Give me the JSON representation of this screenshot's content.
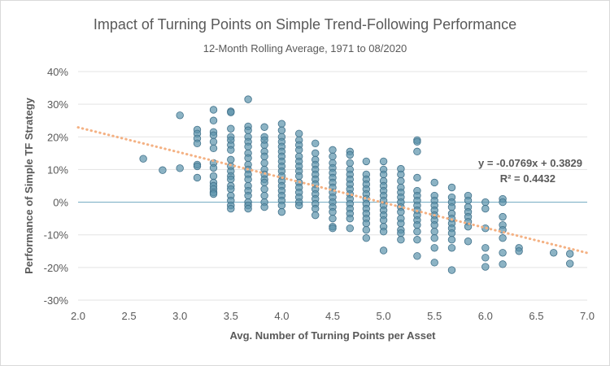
{
  "chart_data": {
    "type": "scatter",
    "title": "Impact of Turning Points on Simple Trend-Following Performance",
    "subtitle": "12-Month Rolling Average, 1971 to 08/2020",
    "xlabel": "Avg. Number of Turning Points per Asset",
    "ylabel": "Performance of Simple TF Strategy",
    "xlim": [
      2.0,
      7.0
    ],
    "ylim": [
      -0.3,
      0.4
    ],
    "x_ticks": [
      "2.0",
      "2.5",
      "3.0",
      "3.5",
      "4.0",
      "4.5",
      "5.0",
      "5.5",
      "6.0",
      "6.5",
      "7.0"
    ],
    "y_ticks": [
      "-30%",
      "-20%",
      "-10%",
      "0%",
      "10%",
      "20%",
      "30%",
      "40%"
    ],
    "grid": "horizontal",
    "trendline": {
      "type": "linear",
      "slope": -0.0769,
      "intercept": 0.3829,
      "style": "dotted",
      "color": "#f4b183",
      "equation_label": "y = -0.0769x + 0.3829",
      "r2_label": "R² = 0.4432"
    },
    "marker_color": "#5b93ab",
    "marker_edge": "#41718a",
    "points": [
      [
        2.64,
        0.133
      ],
      [
        2.83,
        0.098
      ],
      [
        3.0,
        0.266
      ],
      [
        3.0,
        0.104
      ],
      [
        3.17,
        0.222
      ],
      [
        3.17,
        0.21
      ],
      [
        3.17,
        0.195
      ],
      [
        3.17,
        0.18
      ],
      [
        3.17,
        0.115
      ],
      [
        3.17,
        0.11
      ],
      [
        3.17,
        0.075
      ],
      [
        3.33,
        0.283
      ],
      [
        3.33,
        0.25
      ],
      [
        3.33,
        0.215
      ],
      [
        3.33,
        0.205
      ],
      [
        3.33,
        0.185
      ],
      [
        3.33,
        0.165
      ],
      [
        3.33,
        0.12
      ],
      [
        3.33,
        0.105
      ],
      [
        3.33,
        0.08
      ],
      [
        3.33,
        0.06
      ],
      [
        3.33,
        0.05
      ],
      [
        3.33,
        0.04
      ],
      [
        3.33,
        0.03
      ],
      [
        3.33,
        0.025
      ],
      [
        3.5,
        0.278
      ],
      [
        3.5,
        0.275
      ],
      [
        3.5,
        0.225
      ],
      [
        3.5,
        0.2
      ],
      [
        3.5,
        0.19
      ],
      [
        3.5,
        0.175
      ],
      [
        3.5,
        0.16
      ],
      [
        3.5,
        0.13
      ],
      [
        3.5,
        0.11
      ],
      [
        3.5,
        0.095
      ],
      [
        3.5,
        0.08
      ],
      [
        3.5,
        0.07
      ],
      [
        3.5,
        0.05
      ],
      [
        3.5,
        0.04
      ],
      [
        3.5,
        0.02
      ],
      [
        3.5,
        0.005
      ],
      [
        3.5,
        -0.01
      ],
      [
        3.5,
        -0.02
      ],
      [
        3.67,
        0.315
      ],
      [
        3.67,
        0.232
      ],
      [
        3.67,
        0.22
      ],
      [
        3.67,
        0.2
      ],
      [
        3.67,
        0.185
      ],
      [
        3.67,
        0.17
      ],
      [
        3.67,
        0.15
      ],
      [
        3.67,
        0.135
      ],
      [
        3.67,
        0.115
      ],
      [
        3.67,
        0.1
      ],
      [
        3.67,
        0.085
      ],
      [
        3.67,
        0.07
      ],
      [
        3.67,
        0.05
      ],
      [
        3.67,
        0.035
      ],
      [
        3.67,
        0.02
      ],
      [
        3.67,
        0.0
      ],
      [
        3.67,
        -0.01
      ],
      [
        3.67,
        -0.02
      ],
      [
        3.83,
        0.23
      ],
      [
        3.83,
        0.2
      ],
      [
        3.83,
        0.19
      ],
      [
        3.83,
        0.175
      ],
      [
        3.83,
        0.155
      ],
      [
        3.83,
        0.14
      ],
      [
        3.83,
        0.12
      ],
      [
        3.83,
        0.1
      ],
      [
        3.83,
        0.085
      ],
      [
        3.83,
        0.07
      ],
      [
        3.83,
        0.06
      ],
      [
        3.83,
        0.04
      ],
      [
        3.83,
        0.02
      ],
      [
        3.83,
        0.0
      ],
      [
        3.83,
        -0.015
      ],
      [
        4.0,
        0.24
      ],
      [
        4.0,
        0.22
      ],
      [
        4.0,
        0.2
      ],
      [
        4.0,
        0.185
      ],
      [
        4.0,
        0.17
      ],
      [
        4.0,
        0.155
      ],
      [
        4.0,
        0.14
      ],
      [
        4.0,
        0.125
      ],
      [
        4.0,
        0.11
      ],
      [
        4.0,
        0.095
      ],
      [
        4.0,
        0.08
      ],
      [
        4.0,
        0.065
      ],
      [
        4.0,
        0.05
      ],
      [
        4.0,
        0.035
      ],
      [
        4.0,
        0.02
      ],
      [
        4.0,
        0.005
      ],
      [
        4.0,
        -0.01
      ],
      [
        4.0,
        -0.03
      ],
      [
        4.17,
        0.21
      ],
      [
        4.17,
        0.19
      ],
      [
        4.17,
        0.175
      ],
      [
        4.17,
        0.16
      ],
      [
        4.17,
        0.14
      ],
      [
        4.17,
        0.125
      ],
      [
        4.17,
        0.11
      ],
      [
        4.17,
        0.095
      ],
      [
        4.17,
        0.08
      ],
      [
        4.17,
        0.06
      ],
      [
        4.17,
        0.045
      ],
      [
        4.17,
        0.03
      ],
      [
        4.17,
        0.015
      ],
      [
        4.17,
        0.0
      ],
      [
        4.17,
        -0.01
      ],
      [
        4.33,
        0.18
      ],
      [
        4.33,
        0.15
      ],
      [
        4.33,
        0.13
      ],
      [
        4.33,
        0.115
      ],
      [
        4.33,
        0.1
      ],
      [
        4.33,
        0.085
      ],
      [
        4.33,
        0.07
      ],
      [
        4.33,
        0.055
      ],
      [
        4.33,
        0.04
      ],
      [
        4.33,
        0.025
      ],
      [
        4.33,
        0.01
      ],
      [
        4.33,
        -0.005
      ],
      [
        4.33,
        -0.02
      ],
      [
        4.33,
        -0.04
      ],
      [
        4.5,
        0.16
      ],
      [
        4.5,
        0.14
      ],
      [
        4.5,
        0.12
      ],
      [
        4.5,
        0.105
      ],
      [
        4.5,
        0.09
      ],
      [
        4.5,
        0.075
      ],
      [
        4.5,
        0.06
      ],
      [
        4.5,
        0.045
      ],
      [
        4.5,
        0.03
      ],
      [
        4.5,
        0.015
      ],
      [
        4.5,
        0.0
      ],
      [
        4.5,
        -0.015
      ],
      [
        4.5,
        -0.03
      ],
      [
        4.5,
        -0.05
      ],
      [
        4.5,
        -0.075
      ],
      [
        4.5,
        -0.08
      ],
      [
        4.67,
        0.155
      ],
      [
        4.67,
        0.145
      ],
      [
        4.67,
        0.12
      ],
      [
        4.67,
        0.1
      ],
      [
        4.67,
        0.085
      ],
      [
        4.67,
        0.07
      ],
      [
        4.67,
        0.055
      ],
      [
        4.67,
        0.04
      ],
      [
        4.67,
        0.025
      ],
      [
        4.67,
        0.01
      ],
      [
        4.67,
        -0.005
      ],
      [
        4.67,
        -0.02
      ],
      [
        4.67,
        -0.035
      ],
      [
        4.67,
        -0.05
      ],
      [
        4.67,
        -0.08
      ],
      [
        4.83,
        0.125
      ],
      [
        4.83,
        0.085
      ],
      [
        4.83,
        0.07
      ],
      [
        4.83,
        0.055
      ],
      [
        4.83,
        0.04
      ],
      [
        4.83,
        0.025
      ],
      [
        4.83,
        0.01
      ],
      [
        4.83,
        -0.005
      ],
      [
        4.83,
        -0.02
      ],
      [
        4.83,
        -0.035
      ],
      [
        4.83,
        -0.05
      ],
      [
        4.83,
        -0.065
      ],
      [
        4.83,
        -0.085
      ],
      [
        4.83,
        -0.11
      ],
      [
        5.0,
        0.125
      ],
      [
        5.0,
        0.1
      ],
      [
        5.0,
        0.085
      ],
      [
        5.0,
        0.065
      ],
      [
        5.0,
        0.05
      ],
      [
        5.0,
        0.035
      ],
      [
        5.0,
        0.02
      ],
      [
        5.0,
        0.005
      ],
      [
        5.0,
        -0.01
      ],
      [
        5.0,
        -0.025
      ],
      [
        5.0,
        -0.04
      ],
      [
        5.0,
        -0.055
      ],
      [
        5.0,
        -0.075
      ],
      [
        5.0,
        -0.09
      ],
      [
        5.0,
        -0.148
      ],
      [
        5.17,
        0.102
      ],
      [
        5.17,
        0.085
      ],
      [
        5.17,
        0.065
      ],
      [
        5.17,
        0.045
      ],
      [
        5.17,
        0.03
      ],
      [
        5.17,
        0.015
      ],
      [
        5.17,
        0.0
      ],
      [
        5.17,
        -0.015
      ],
      [
        5.17,
        -0.03
      ],
      [
        5.17,
        -0.05
      ],
      [
        5.17,
        -0.065
      ],
      [
        5.17,
        -0.085
      ],
      [
        5.17,
        -0.095
      ],
      [
        5.17,
        -0.115
      ],
      [
        5.33,
        0.19
      ],
      [
        5.33,
        0.185
      ],
      [
        5.33,
        0.155
      ],
      [
        5.33,
        0.075
      ],
      [
        5.33,
        0.035
      ],
      [
        5.33,
        0.02
      ],
      [
        5.33,
        0.005
      ],
      [
        5.33,
        -0.01
      ],
      [
        5.33,
        -0.025
      ],
      [
        5.33,
        -0.04
      ],
      [
        5.33,
        -0.055
      ],
      [
        5.33,
        -0.07
      ],
      [
        5.33,
        -0.09
      ],
      [
        5.33,
        -0.115
      ],
      [
        5.33,
        -0.165
      ],
      [
        5.5,
        0.06
      ],
      [
        5.5,
        0.02
      ],
      [
        5.5,
        0.005
      ],
      [
        5.5,
        -0.01
      ],
      [
        5.5,
        -0.025
      ],
      [
        5.5,
        -0.04
      ],
      [
        5.5,
        -0.055
      ],
      [
        5.5,
        -0.07
      ],
      [
        5.5,
        -0.09
      ],
      [
        5.5,
        -0.11
      ],
      [
        5.5,
        -0.14
      ],
      [
        5.5,
        -0.185
      ],
      [
        5.67,
        0.045
      ],
      [
        5.67,
        0.015
      ],
      [
        5.67,
        0.0
      ],
      [
        5.67,
        -0.015
      ],
      [
        5.67,
        -0.035
      ],
      [
        5.67,
        -0.05
      ],
      [
        5.67,
        -0.065
      ],
      [
        5.67,
        -0.08
      ],
      [
        5.67,
        -0.095
      ],
      [
        5.67,
        -0.115
      ],
      [
        5.67,
        -0.14
      ],
      [
        5.67,
        -0.208
      ],
      [
        5.83,
        0.02
      ],
      [
        5.83,
        0.005
      ],
      [
        5.83,
        -0.015
      ],
      [
        5.83,
        -0.03
      ],
      [
        5.83,
        -0.045
      ],
      [
        5.83,
        -0.06
      ],
      [
        5.83,
        -0.075
      ],
      [
        5.83,
        -0.12
      ],
      [
        6.0,
        0.0
      ],
      [
        6.0,
        -0.02
      ],
      [
        6.0,
        -0.08
      ],
      [
        6.0,
        -0.14
      ],
      [
        6.0,
        -0.17
      ],
      [
        6.0,
        -0.198
      ],
      [
        6.17,
        0.01
      ],
      [
        6.17,
        0.0
      ],
      [
        6.17,
        -0.045
      ],
      [
        6.17,
        -0.07
      ],
      [
        6.17,
        -0.085
      ],
      [
        6.17,
        -0.11
      ],
      [
        6.17,
        -0.155
      ],
      [
        6.17,
        -0.19
      ],
      [
        6.33,
        -0.14
      ],
      [
        6.33,
        -0.15
      ],
      [
        6.67,
        -0.155
      ],
      [
        6.83,
        -0.158
      ],
      [
        6.83,
        -0.188
      ]
    ]
  }
}
